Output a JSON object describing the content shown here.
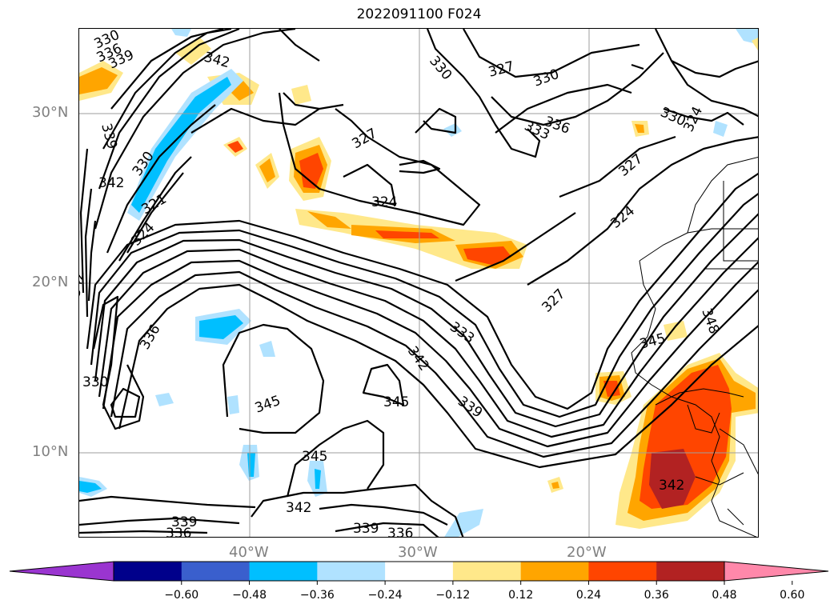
{
  "title": "2022091100 F024",
  "lat_labels": [
    "30°N",
    "20°N",
    "10°N"
  ],
  "lon_labels": [
    "40°W",
    "30°W",
    "20°W"
  ],
  "colorbar": {
    "ticks": [
      "−0.60",
      "−0.48",
      "−0.36",
      "−0.24",
      "−0.12",
      "0.12",
      "0.24",
      "0.36",
      "0.48",
      "0.60"
    ],
    "colors": [
      "#9a35d0",
      "#00008b",
      "#3a5fcd",
      "#00bfff",
      "#b0e2ff",
      "#ffffff",
      "#ffe88a",
      "#ffa500",
      "#ff4500",
      "#b22222",
      "#ff88aa"
    ],
    "extend": "both"
  },
  "contour_labels": [
    {
      "text": "330"
    },
    {
      "text": "336"
    },
    {
      "text": "339"
    },
    {
      "text": "342"
    },
    {
      "text": "339"
    },
    {
      "text": "342"
    },
    {
      "text": "321"
    },
    {
      "text": "324"
    },
    {
      "text": "330"
    },
    {
      "text": "327"
    },
    {
      "text": "327"
    },
    {
      "text": "330"
    },
    {
      "text": "333"
    },
    {
      "text": "336"
    },
    {
      "text": "330"
    },
    {
      "text": "324"
    },
    {
      "text": "327"
    },
    {
      "text": "324"
    },
    {
      "text": "327"
    },
    {
      "text": "330"
    },
    {
      "text": "324"
    },
    {
      "text": "336"
    },
    {
      "text": "330"
    },
    {
      "text": "333"
    },
    {
      "text": "342"
    },
    {
      "text": "339"
    },
    {
      "text": "345"
    },
    {
      "text": "345"
    },
    {
      "text": "345"
    },
    {
      "text": "342"
    },
    {
      "text": "339"
    },
    {
      "text": "336"
    },
    {
      "text": "339"
    },
    {
      "text": "336"
    },
    {
      "text": "345"
    },
    {
      "text": "348"
    },
    {
      "text": "342"
    },
    {
      "text": "342"
    }
  ]
}
